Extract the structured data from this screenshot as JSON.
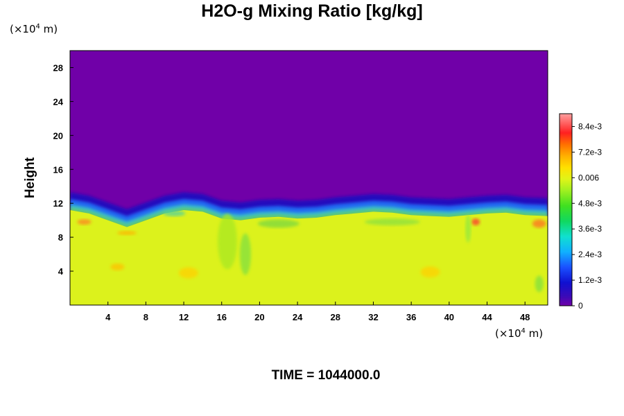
{
  "chart_data": {
    "type": "heatmap",
    "title": "H2O-g Mixing Ratio [kg/kg]",
    "ylabel": "Height",
    "y_unit_prefix": "(×10",
    "y_unit_exp": "4",
    "y_unit_suffix": " m)",
    "x_unit_prefix": "(×10",
    "x_unit_exp": "4",
    "x_unit_suffix": " m)",
    "xlim": [
      0,
      50.4
    ],
    "ylim": [
      0,
      30
    ],
    "x_ticks": [
      "4",
      "8",
      "12",
      "16",
      "20",
      "24",
      "28",
      "32",
      "36",
      "40",
      "44",
      "48"
    ],
    "y_ticks": [
      "4",
      "8",
      "12",
      "16",
      "20",
      "24",
      "28"
    ],
    "colorbar": {
      "range": [
        0,
        0.009
      ],
      "tick_values": [
        0,
        0.0012,
        0.0024,
        0.0036,
        0.0048,
        0.006,
        0.0072,
        0.0084
      ],
      "tick_labels": [
        "0",
        "1.2e-3",
        "2.4e-3",
        "3.6e-3",
        "4.8e-3",
        "0.006",
        "7.2e-3",
        "8.4e-3"
      ]
    },
    "field_description_values": {
      "upper_layer_value": 0,
      "lower_layer_value": 0.0062,
      "interface_height": [
        [
          0,
          12.2
        ],
        [
          2,
          11.8
        ],
        [
          4,
          11.0
        ],
        [
          6,
          10.2
        ],
        [
          8,
          11.0
        ],
        [
          10,
          11.8
        ],
        [
          12,
          12.2
        ],
        [
          14,
          12.0
        ],
        [
          16,
          11.2
        ],
        [
          18,
          11.0
        ],
        [
          20,
          11.3
        ],
        [
          22,
          11.4
        ],
        [
          24,
          11.2
        ],
        [
          26,
          11.3
        ],
        [
          28,
          11.6
        ],
        [
          30,
          11.8
        ],
        [
          32,
          12.0
        ],
        [
          34,
          11.9
        ],
        [
          36,
          11.6
        ],
        [
          38,
          11.5
        ],
        [
          40,
          11.4
        ],
        [
          42,
          11.6
        ],
        [
          44,
          11.8
        ],
        [
          46,
          11.9
        ],
        [
          48,
          11.6
        ],
        [
          50.4,
          11.5
        ]
      ]
    }
  },
  "time_label": "TIME = 1044000.0",
  "colors": {
    "background_top": "#7000a8",
    "field_bulk": "#dcf21c"
  }
}
